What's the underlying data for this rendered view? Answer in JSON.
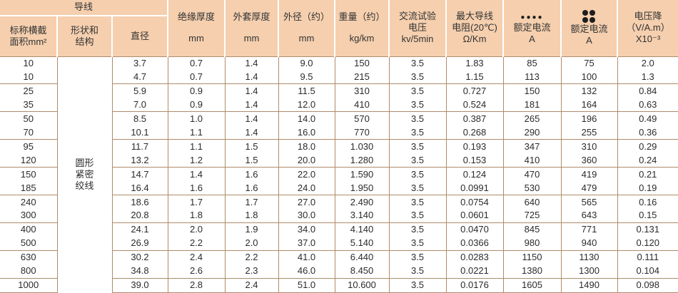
{
  "header": {
    "conductor": "导线",
    "cross_section": [
      "标称横截",
      "面积mm²"
    ],
    "shape": [
      "形状和",
      "结构"
    ],
    "diameter": "直径",
    "insulation": [
      "绝缘厚度",
      "mm"
    ],
    "sheath": [
      "外套厚度",
      "mm"
    ],
    "outer_dia": [
      "外径（约）",
      "mm"
    ],
    "weight": [
      "重量（约）",
      "kg/km"
    ],
    "ac_test": [
      "交流试验",
      "电压",
      "kv/5min"
    ],
    "max_res": [
      "最大导线",
      "电阻(20℃)",
      "Ω/Km"
    ],
    "rated_flat": [
      "额定电流",
      "A"
    ],
    "rated_trefoil": [
      "额定电流",
      "A"
    ],
    "voltage_drop": [
      "电压降",
      "（V/A.m）",
      "X10⁻³"
    ],
    "icon_flat": "four-dots-in-row-icon",
    "icon_trefoil": "four-dots-in-square-icon"
  },
  "shape_text": [
    "圆形",
    "紧密",
    "绞线"
  ],
  "rows": [
    [
      "10",
      "3.7",
      "0.7",
      "1.4",
      "9.0",
      "150",
      "3.5",
      "1.83",
      "85",
      "75",
      "2.0"
    ],
    [
      "10",
      "4.7",
      "0.7",
      "1.4",
      "9.5",
      "215",
      "3.5",
      "1.15",
      "113",
      "100",
      "1.3"
    ],
    [
      "25",
      "5.9",
      "0.9",
      "1.4",
      "11.5",
      "310",
      "3.5",
      "0.727",
      "150",
      "132",
      "0.84"
    ],
    [
      "35",
      "7.0",
      "0.9",
      "1.4",
      "12.0",
      "410",
      "3.5",
      "0.524",
      "181",
      "164",
      "0.63"
    ],
    [
      "50",
      "8.5",
      "1.0",
      "1.4",
      "14.0",
      "570",
      "3.5",
      "0.387",
      "265",
      "196",
      "0.49"
    ],
    [
      "70",
      "10.1",
      "1.1",
      "1.4",
      "16.0",
      "770",
      "3.5",
      "0.268",
      "290",
      "255",
      "0.36"
    ],
    [
      "95",
      "11.7",
      "1.1",
      "1.5",
      "18.0",
      "1.030",
      "3.5",
      "0.193",
      "347",
      "310",
      "0.29"
    ],
    [
      "120",
      "13.2",
      "1.2",
      "1.5",
      "20.0",
      "1.280",
      "3.5",
      "0.153",
      "410",
      "360",
      "0.24"
    ],
    [
      "150",
      "14.7",
      "1.4",
      "1.6",
      "22.0",
      "1.590",
      "3.5",
      "0.124",
      "470",
      "419",
      "0.21"
    ],
    [
      "185",
      "16.4",
      "1.6",
      "1.6",
      "24.0",
      "1.950",
      "3.5",
      "0.0991",
      "530",
      "479",
      "0.19"
    ],
    [
      "240",
      "18.6",
      "1.7",
      "1.7",
      "27.0",
      "2.490",
      "3.5",
      "0.0754",
      "640",
      "565",
      "0.16"
    ],
    [
      "300",
      "20.8",
      "1.8",
      "1.8",
      "30.0",
      "3.140",
      "3.5",
      "0.0601",
      "725",
      "643",
      "0.15"
    ],
    [
      "400",
      "24.1",
      "2.0",
      "1.9",
      "34.0",
      "4.140",
      "3.5",
      "0.0470",
      "845",
      "771",
      "0.131"
    ],
    [
      "500",
      "26.9",
      "2.2",
      "2.0",
      "37.0",
      "5.140",
      "3.5",
      "0.0366",
      "980",
      "940",
      "0.120"
    ],
    [
      "630",
      "30.2",
      "2.4",
      "2.2",
      "41.0",
      "6.440",
      "3.5",
      "0.0283",
      "1150",
      "1130",
      "0.111"
    ],
    [
      "800",
      "34.8",
      "2.6",
      "2.3",
      "46.0",
      "8.450",
      "3.5",
      "0.0221",
      "1380",
      "1300",
      "0.104"
    ],
    [
      "1000",
      "39.0",
      "2.8",
      "2.4",
      "51.0",
      "10.600",
      "3.5",
      "0.0176",
      "1605",
      "1490",
      "0.098"
    ]
  ],
  "colors": {
    "header_bg": "#f5cfae",
    "rule": "#b08b6a",
    "text": "#2b2b2b"
  }
}
